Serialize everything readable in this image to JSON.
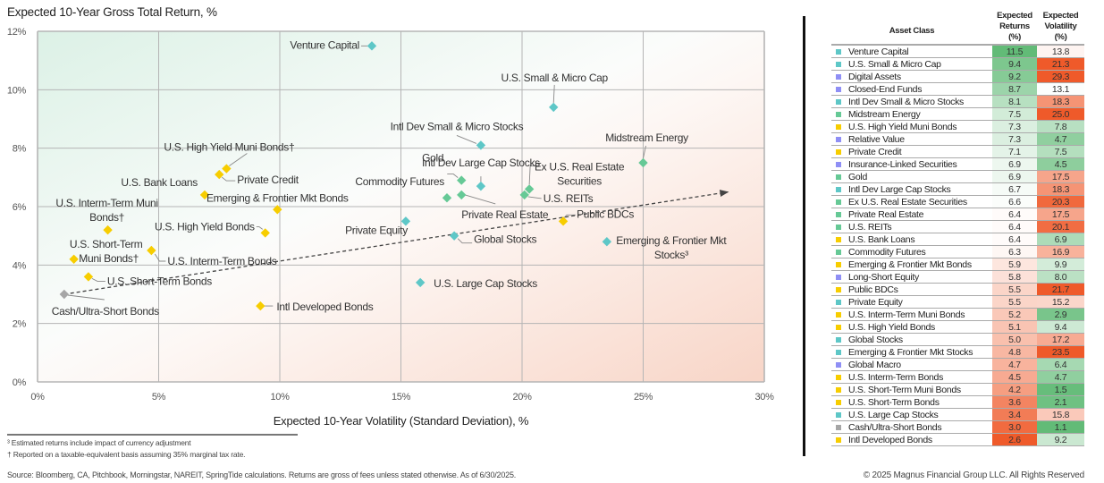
{
  "colors": {
    "equity": "#5ec7c7",
    "real_assets": "#66c996",
    "fixed_income": "#f7cd00",
    "diversifier": "#8f8ff5",
    "cash": "#a6a6a6",
    "good": "#62bb77",
    "neutral": "#ffffff",
    "bad": "#ef5a2a"
  },
  "chart_data": {
    "type": "scatter",
    "title": "Expected 10-Year Gross Total Return, %",
    "xlabel": "Expected 10-Year Volatility (Standard Deviation), %",
    "ylabel": "Expected 10-Year Gross Total Return, %",
    "xlim": [
      0,
      30
    ],
    "ylim": [
      0,
      12
    ],
    "x_ticks": [
      0,
      5,
      10,
      15,
      20,
      25,
      30
    ],
    "x_tick_labels": [
      "0%",
      "5%",
      "10%",
      "15%",
      "20%",
      "25%",
      "30%"
    ],
    "y_ticks": [
      0,
      2,
      4,
      6,
      8,
      10,
      12
    ],
    "y_tick_labels": [
      "0%",
      "2%",
      "4%",
      "6%",
      "8%",
      "10%",
      "12%"
    ],
    "grid": true,
    "trendline": {
      "from": [
        1.1,
        3.0
      ],
      "to": [
        28.5,
        6.5
      ],
      "style": "dashed-arrow"
    },
    "points": [
      {
        "name": "Venture Capital",
        "label": "Venture Capital",
        "x": 13.8,
        "y": 11.5,
        "group": "equity"
      },
      {
        "name": "U.S. Small & Micro Cap",
        "label": "U.S. Small & Micro Cap",
        "x": 21.3,
        "y": 9.4,
        "group": "equity"
      },
      {
        "name": "Intl Dev Small & Micro Stocks",
        "label": "Intl Dev Small & Micro Stocks",
        "x": 18.3,
        "y": 8.1,
        "group": "equity"
      },
      {
        "name": "Midstream Energy",
        "label": "Midstream Energy",
        "x": 25.0,
        "y": 7.5,
        "group": "real_assets"
      },
      {
        "name": "U.S. High Yield Muni Bonds",
        "label": "U.S. High Yield Muni Bonds†",
        "x": 7.8,
        "y": 7.3,
        "group": "fixed_income"
      },
      {
        "name": "Private Credit",
        "label": "Private Credit",
        "x": 7.5,
        "y": 7.1,
        "group": "fixed_income"
      },
      {
        "name": "Gold",
        "label": "Gold",
        "x": 17.5,
        "y": 6.9,
        "group": "real_assets"
      },
      {
        "name": "Intl Dev Large Cap Stocks",
        "label": "Intl Dev Large Cap Stocks",
        "x": 18.3,
        "y": 6.7,
        "group": "equity"
      },
      {
        "name": "Ex U.S. Real Estate Securities",
        "label": "Ex U.S. Real Estate Securities",
        "x": 20.3,
        "y": 6.6,
        "group": "real_assets"
      },
      {
        "name": "Private Real Estate",
        "label": "Private Real Estate",
        "x": 17.5,
        "y": 6.4,
        "group": "real_assets"
      },
      {
        "name": "U.S. REITs",
        "label": "U.S. REITs",
        "x": 20.1,
        "y": 6.4,
        "group": "real_assets"
      },
      {
        "name": "U.S. Bank Loans",
        "label": "U.S. Bank Loans",
        "x": 6.9,
        "y": 6.4,
        "group": "fixed_income"
      },
      {
        "name": "Commodity Futures",
        "label": "Commodity Futures",
        "x": 16.9,
        "y": 6.3,
        "group": "real_assets"
      },
      {
        "name": "Emerging & Frontier Mkt Bonds",
        "label": "Emerging & Frontier Mkt Bonds",
        "x": 9.9,
        "y": 5.9,
        "group": "fixed_income"
      },
      {
        "name": "Public BDCs",
        "label": "Public BDCs",
        "x": 21.7,
        "y": 5.5,
        "group": "fixed_income"
      },
      {
        "name": "Private Equity",
        "label": "Private Equity",
        "x": 15.2,
        "y": 5.5,
        "group": "equity"
      },
      {
        "name": "U.S. Interm-Term Muni Bonds",
        "label": "U.S. Interm-Term Muni Bonds†",
        "x": 2.9,
        "y": 5.2,
        "group": "fixed_income"
      },
      {
        "name": "U.S. High Yield Bonds",
        "label": "U.S. High Yield Bonds",
        "x": 9.4,
        "y": 5.1,
        "group": "fixed_income"
      },
      {
        "name": "Global Stocks",
        "label": "Global Stocks",
        "x": 17.2,
        "y": 5.0,
        "group": "equity"
      },
      {
        "name": "Emerging & Frontier Mkt Stocks",
        "label": "Emerging & Frontier Mkt Stocks³",
        "x": 23.5,
        "y": 4.8,
        "group": "equity"
      },
      {
        "name": "U.S. Interm-Term Bonds",
        "label": "U.S. Interm-Term Bonds",
        "x": 4.7,
        "y": 4.5,
        "group": "fixed_income"
      },
      {
        "name": "U.S. Short-Term Muni Bonds",
        "label": "U.S. Short-Term Muni Bonds†",
        "x": 1.5,
        "y": 4.2,
        "group": "fixed_income"
      },
      {
        "name": "U.S. Short-Term Bonds",
        "label": "U.S. Short-Term Bonds",
        "x": 2.1,
        "y": 3.6,
        "group": "fixed_income"
      },
      {
        "name": "U.S. Large Cap Stocks",
        "label": "U.S. Large Cap Stocks",
        "x": 15.8,
        "y": 3.4,
        "group": "equity"
      },
      {
        "name": "Cash/Ultra-Short Bonds",
        "label": "Cash/Ultra-Short Bonds",
        "x": 1.1,
        "y": 3.0,
        "group": "cash"
      },
      {
        "name": "Intl Developed Bonds",
        "label": "Intl Developed Bonds",
        "x": 9.2,
        "y": 2.6,
        "group": "fixed_income"
      }
    ]
  },
  "table": {
    "headers": {
      "asset": "Asset Class",
      "returns": [
        "Expected",
        "Returns",
        "(%)"
      ],
      "volatility": [
        "Expected",
        "Volatility",
        "(%)"
      ]
    },
    "rows": [
      {
        "asset": "Venture Capital",
        "group": "equity",
        "ret": "11.5",
        "vol": "13.8"
      },
      {
        "asset": "U.S. Small & Micro Cap",
        "group": "equity",
        "ret": "9.4",
        "vol": "21.3"
      },
      {
        "asset": "Digital Assets",
        "group": "diversifier",
        "ret": "9.2",
        "vol": "29.3"
      },
      {
        "asset": "Closed-End Funds",
        "group": "diversifier",
        "ret": "8.7",
        "vol": "13.1"
      },
      {
        "asset": "Intl Dev Small & Micro Stocks",
        "group": "equity",
        "ret": "8.1",
        "vol": "18.3"
      },
      {
        "asset": "Midstream Energy",
        "group": "real_assets",
        "ret": "7.5",
        "vol": "25.0"
      },
      {
        "asset": "U.S. High Yield Muni Bonds",
        "group": "fixed_income",
        "ret": "7.3",
        "vol": "7.8"
      },
      {
        "asset": "Relative Value",
        "group": "diversifier",
        "ret": "7.3",
        "vol": "4.7"
      },
      {
        "asset": "Private Credit",
        "group": "fixed_income",
        "ret": "7.1",
        "vol": "7.5"
      },
      {
        "asset": "Insurance-Linked Securities",
        "group": "diversifier",
        "ret": "6.9",
        "vol": "4.5"
      },
      {
        "asset": "Gold",
        "group": "real_assets",
        "ret": "6.9",
        "vol": "17.5"
      },
      {
        "asset": "Intl Dev Large Cap Stocks",
        "group": "equity",
        "ret": "6.7",
        "vol": "18.3"
      },
      {
        "asset": "Ex U.S. Real Estate Securities",
        "group": "real_assets",
        "ret": "6.6",
        "vol": "20.3"
      },
      {
        "asset": "Private Real Estate",
        "group": "real_assets",
        "ret": "6.4",
        "vol": "17.5"
      },
      {
        "asset": "U.S. REITs",
        "group": "real_assets",
        "ret": "6.4",
        "vol": "20.1"
      },
      {
        "asset": "U.S. Bank Loans",
        "group": "fixed_income",
        "ret": "6.4",
        "vol": "6.9"
      },
      {
        "asset": "Commodity Futures",
        "group": "real_assets",
        "ret": "6.3",
        "vol": "16.9"
      },
      {
        "asset": "Emerging & Frontier Mkt Bonds",
        "group": "fixed_income",
        "ret": "5.9",
        "vol": "9.9"
      },
      {
        "asset": "Long-Short Equity",
        "group": "diversifier",
        "ret": "5.8",
        "vol": "8.0"
      },
      {
        "asset": "Public BDCs",
        "group": "fixed_income",
        "ret": "5.5",
        "vol": "21.7"
      },
      {
        "asset": "Private Equity",
        "group": "equity",
        "ret": "5.5",
        "vol": "15.2"
      },
      {
        "asset": "U.S. Interm-Term Muni Bonds",
        "group": "fixed_income",
        "ret": "5.2",
        "vol": "2.9"
      },
      {
        "asset": "U.S. High Yield Bonds",
        "group": "fixed_income",
        "ret": "5.1",
        "vol": "9.4"
      },
      {
        "asset": "Global Stocks",
        "group": "equity",
        "ret": "5.0",
        "vol": "17.2"
      },
      {
        "asset": "Emerging & Frontier Mkt Stocks",
        "group": "equity",
        "ret": "4.8",
        "vol": "23.5"
      },
      {
        "asset": "Global Macro",
        "group": "diversifier",
        "ret": "4.7",
        "vol": "6.4"
      },
      {
        "asset": "U.S. Interm-Term Bonds",
        "group": "fixed_income",
        "ret": "4.5",
        "vol": "4.7"
      },
      {
        "asset": "U.S. Short-Term Muni Bonds",
        "group": "fixed_income",
        "ret": "4.2",
        "vol": "1.5"
      },
      {
        "asset": "U.S. Short-Term Bonds",
        "group": "fixed_income",
        "ret": "3.6",
        "vol": "2.1"
      },
      {
        "asset": "U.S. Large Cap Stocks",
        "group": "equity",
        "ret": "3.4",
        "vol": "15.8"
      },
      {
        "asset": "Cash/Ultra-Short Bonds",
        "group": "cash",
        "ret": "3.0",
        "vol": "1.1"
      },
      {
        "asset": "Intl Developed Bonds",
        "group": "fixed_income",
        "ret": "2.6",
        "vol": "9.2"
      }
    ]
  },
  "footnotes": {
    "currency": "³ Estimated returns include impact of currency adjustment",
    "taxable": "† Reported on a taxable-equivalent basis assuming 35% marginal tax rate.",
    "source": "Source: Bloomberg, CA, Pitchbook, Morningstar, NAREIT, SpringTide calculations. Returns are gross of fees unless stated otherwise. As of 6/30/2025.",
    "copyright": "© 2025 Magnus Financial Group LLC. All Rights Reserved"
  }
}
